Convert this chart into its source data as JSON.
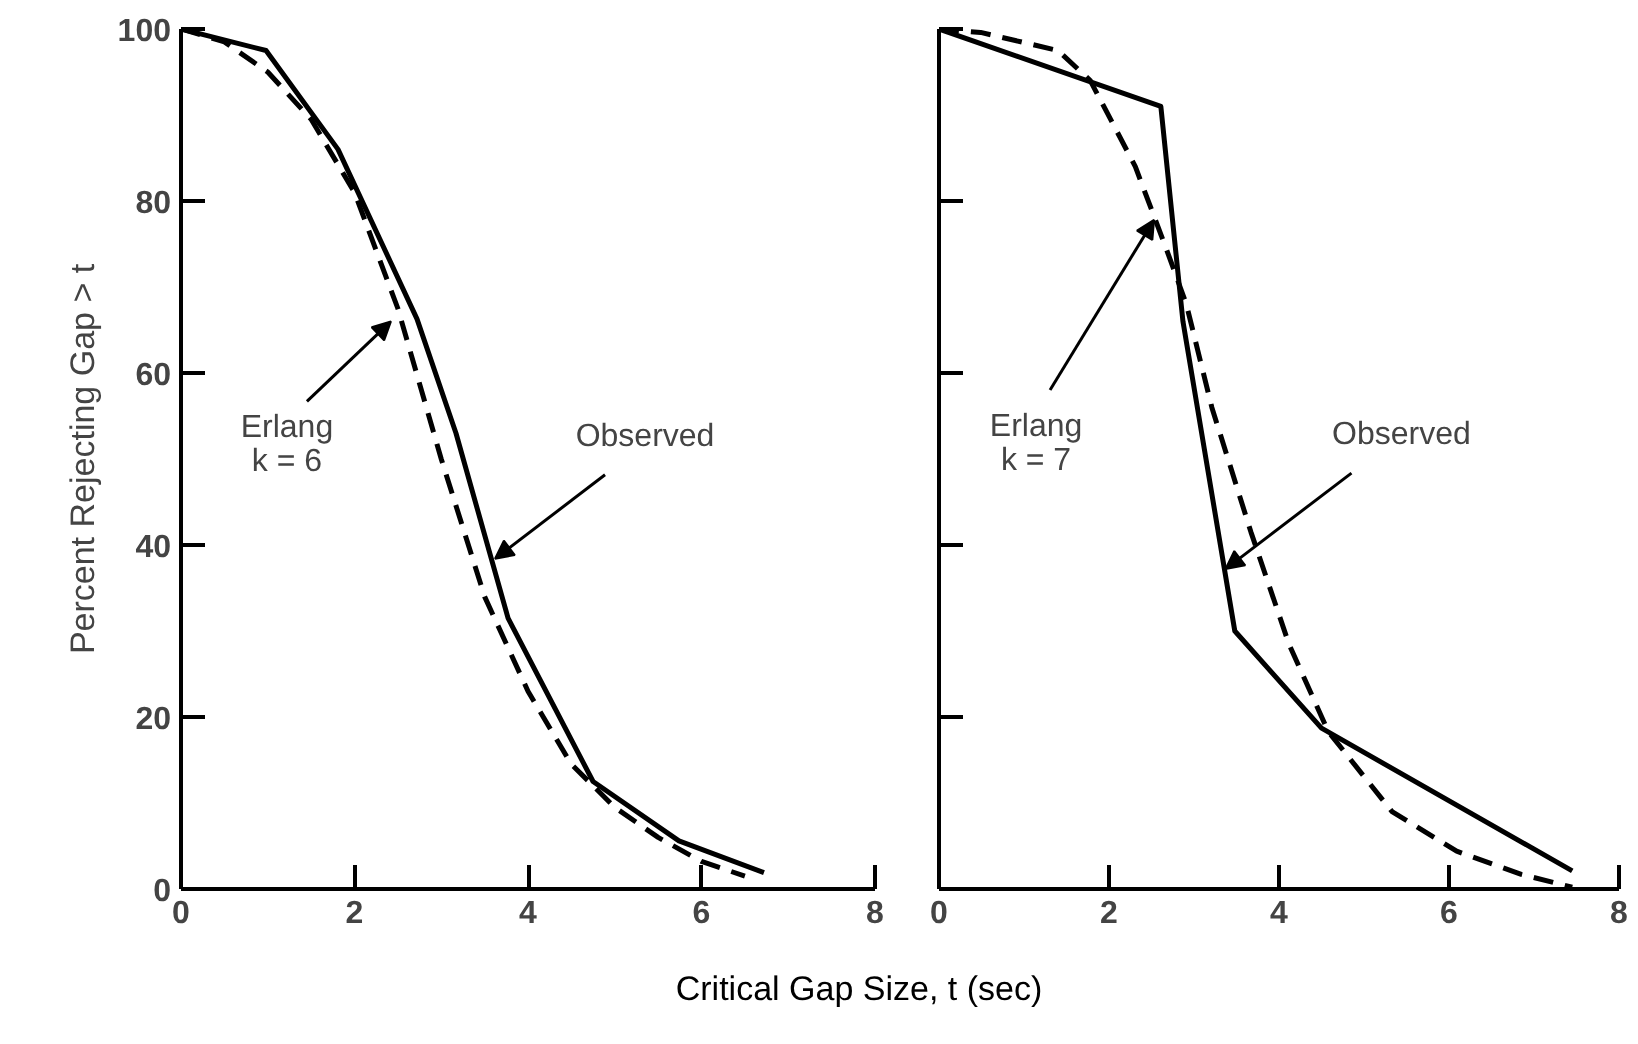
{
  "chart_data": [
    {
      "type": "line",
      "ylabel": "Percent Rejecting Gap > t",
      "xlabel": "Critical Gap Size, t (sec)",
      "xlim": [
        0,
        8
      ],
      "xticks": [
        0,
        2,
        4,
        6,
        8
      ],
      "ylim": [
        0,
        100
      ],
      "yticks": [
        0,
        20,
        40,
        60,
        80,
        100
      ],
      "grid": false,
      "series": [
        {
          "color": "#000000",
          "line_style": "solid",
          "x": [
            0,
            0.98,
            1.81,
            2.72,
            3.17,
            3.77,
            4.75,
            5.74,
            6.72
          ],
          "values": [
            100,
            97.5,
            86,
            66.3,
            53,
            31.5,
            12.5,
            5.6,
            1.9
          ]
        },
        {
          "color": "#000000",
          "line_style": "dashed",
          "x": [
            0,
            0.5,
            1,
            1.5,
            2,
            2.5,
            3,
            3.25,
            3.5,
            4,
            4.5,
            5,
            5.5,
            6,
            6.5
          ],
          "values": [
            100,
            98.5,
            95,
            89.5,
            81,
            67.5,
            50,
            42,
            34,
            23,
            14.5,
            9.5,
            6,
            3.2,
            1.5
          ]
        }
      ],
      "annotations": [
        {
          "text": "Erlang\nk = 6",
          "x": 2.42,
          "y": 66
        },
        {
          "text": "Observed",
          "x": 3.62,
          "y": 38.4
        }
      ]
    },
    {
      "type": "line",
      "tick_labels": "x",
      "xlim": [
        0,
        8
      ],
      "xticks": [
        0,
        2,
        4,
        6,
        8
      ],
      "ylim": [
        0,
        100
      ],
      "yticks": [
        0,
        20,
        40,
        60,
        80,
        100
      ],
      "grid": false,
      "series": [
        {
          "color": "#000000",
          "line_style": "solid",
          "x": [
            0,
            2.61,
            2.87,
            3.48,
            4.5,
            7.45
          ],
          "values": [
            100,
            91,
            66,
            30,
            18.7,
            2.1
          ]
        },
        {
          "color": "#000000",
          "line_style": "dashed",
          "x": [
            0,
            0.49,
            1.4,
            1.78,
            2.31,
            2.69,
            2.91,
            3.21,
            3.67,
            4.12,
            4.58,
            5.33,
            6.09,
            6.85,
            7.45
          ],
          "values": [
            100,
            99.6,
            97.5,
            94,
            84,
            74,
            68,
            56,
            41.5,
            28.4,
            18.3,
            9,
            4.4,
            1.7,
            0.2
          ]
        }
      ],
      "annotations": [
        {
          "text": "Erlang\nk = 7",
          "x": 2.53,
          "y": 77.8
        },
        {
          "text": "Observed",
          "x": 3.37,
          "y": 37.2
        }
      ]
    }
  ]
}
